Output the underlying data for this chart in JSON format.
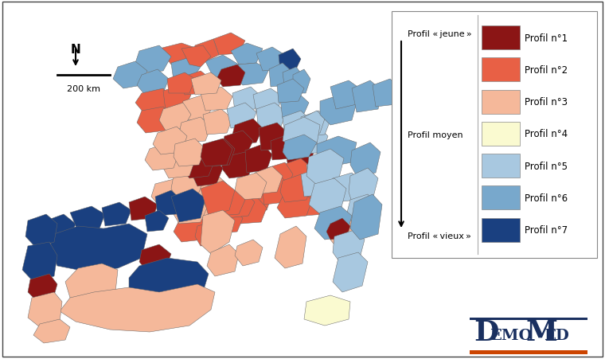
{
  "profile_colors": {
    "1": "#8B1515",
    "2": "#E86045",
    "3": "#F5B89A",
    "4": "#FAFAD0",
    "5": "#A8C8E0",
    "6": "#78A8CC",
    "7": "#1A4080"
  },
  "profile_labels": [
    "Profil n°1",
    "Profil n°2",
    "Profil n°3",
    "Profil n°4",
    "Profil n°5",
    "Profil n°6",
    "Profil n°7"
  ],
  "background": "#ffffff",
  "border_color": "#666666",
  "border_lw": 0.35
}
